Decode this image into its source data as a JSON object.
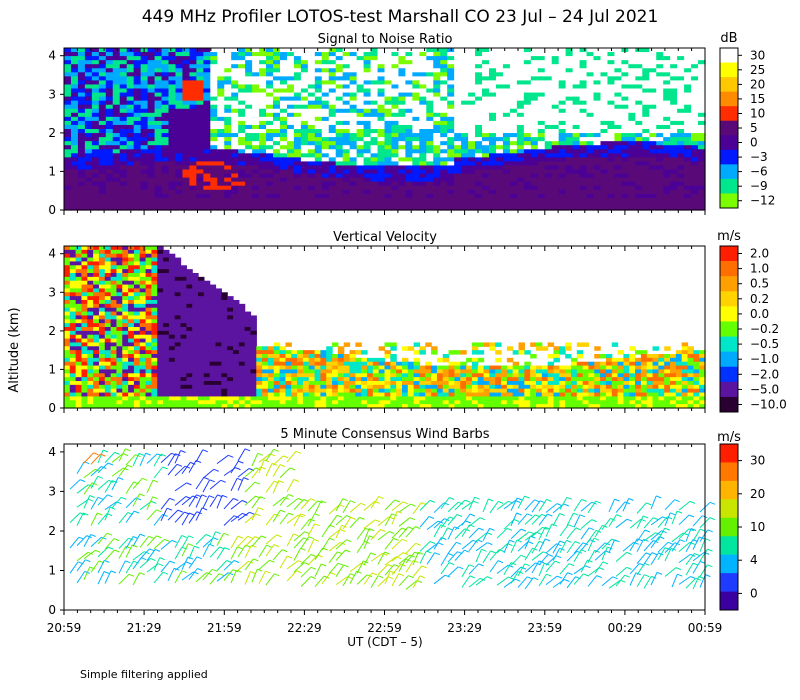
{
  "figure": {
    "title": "449 MHz Profiler LOTOS-test Marshall CO 23 Jul – 24 Jul 2021",
    "ylabel": "Altitude (km)",
    "xlabel": "UT  (CDT – 5)",
    "footnote": "Simple filtering applied"
  },
  "chart_data": [
    {
      "type": "heatmap",
      "title": "Signal to Noise Ratio",
      "colorbar_unit": "dB",
      "colorbar_ticks": [
        "30",
        "25",
        "20",
        "15",
        "10",
        "5",
        "0",
        "−3",
        "−6",
        "−9",
        "−12"
      ],
      "colorbar_colors": [
        "#ffffff",
        "#ffff00",
        "#ffc800",
        "#ff8c00",
        "#ff2d00",
        "#5a0a78",
        "#4b0096",
        "#0019ff",
        "#00aaff",
        "#00e68c",
        "#7cfc00"
      ],
      "x_ticks": [
        "20:59",
        "21:29",
        "21:59",
        "22:29",
        "22:59",
        "23:29",
        "23:59",
        "00:29",
        "00:59"
      ],
      "y_ticks": [
        "0",
        "1",
        "2",
        "3",
        "4"
      ],
      "ylim": [
        0,
        4.2
      ]
    },
    {
      "type": "heatmap",
      "title": "Vertical Velocity",
      "colorbar_unit": "m/s",
      "colorbar_ticks": [
        "2.0",
        "1.0",
        "0.5",
        "0.2",
        "0.0",
        "−0.2",
        "−0.5",
        "−1.0",
        "−2.0",
        "−5.0",
        "−10.0"
      ],
      "colorbar_colors": [
        "#ff1e00",
        "#ff6e00",
        "#ffa000",
        "#ffd200",
        "#ffff00",
        "#64ff00",
        "#00e6c8",
        "#00aaff",
        "#0032ff",
        "#5a14a0",
        "#2a0032"
      ],
      "x_ticks": [
        "20:59",
        "21:29",
        "21:59",
        "22:29",
        "22:59",
        "23:29",
        "23:59",
        "00:29",
        "00:59"
      ],
      "y_ticks": [
        "0",
        "1",
        "2",
        "3",
        "4"
      ],
      "ylim": [
        0,
        4.2
      ]
    },
    {
      "type": "scatter",
      "title": "5 Minute Consensus Wind Barbs",
      "colorbar_unit": "m/s",
      "colorbar_ticks": [
        "30",
        "20",
        "10",
        "4",
        "0"
      ],
      "colorbar_colors": [
        "#ff1e00",
        "#ff7800",
        "#ffb400",
        "#c8e600",
        "#64f000",
        "#00e6a0",
        "#00b4ff",
        "#1e3cff",
        "#3c00a0"
      ],
      "x_ticks": [
        "20:59",
        "21:29",
        "21:59",
        "22:29",
        "22:59",
        "23:29",
        "23:59",
        "00:29",
        "00:59"
      ],
      "y_ticks": [
        "0",
        "1",
        "2",
        "3",
        "4"
      ],
      "ylim": [
        0,
        4.2
      ]
    }
  ]
}
